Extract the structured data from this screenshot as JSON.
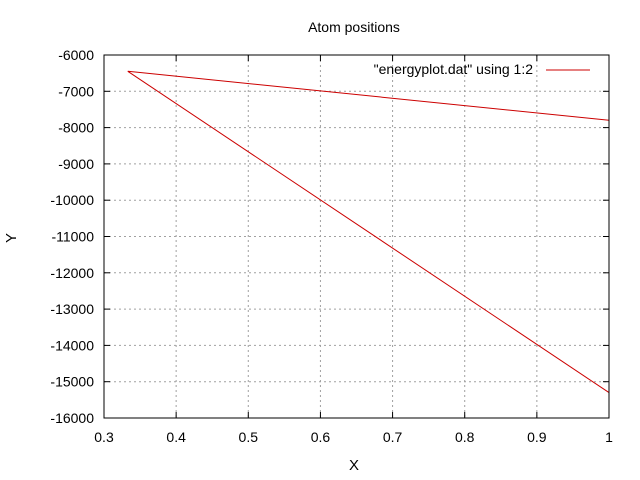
{
  "chart_data": {
    "type": "line",
    "title": "Atom positions",
    "xlabel": "X",
    "ylabel": "Y",
    "xlim": [
      0.3,
      1.0
    ],
    "ylim": [
      -16000,
      -6000
    ],
    "xticks": [
      0.3,
      0.4,
      0.5,
      0.6,
      0.7,
      0.8,
      0.9,
      1.0
    ],
    "xtick_labels": [
      "0.3",
      "0.4",
      "0.5",
      "0.6",
      "0.7",
      "0.8",
      "0.9",
      "1"
    ],
    "yticks": [
      -6000,
      -7000,
      -8000,
      -9000,
      -10000,
      -11000,
      -12000,
      -13000,
      -14000,
      -15000,
      -16000
    ],
    "ytick_labels": [
      "-6000",
      "-7000",
      "-8000",
      "-9000",
      "-10000",
      "-11000",
      "-12000",
      "-13000",
      "-14000",
      "-15000",
      "-16000"
    ],
    "grid": true,
    "legend_position": "top-right",
    "series": [
      {
        "name": "\"energyplot.dat\" using 1:2",
        "color": "#cc0000",
        "x": [
          1.0,
          0.333,
          1.0
        ],
        "y": [
          -7800,
          -6450,
          -15300
        ]
      }
    ]
  }
}
